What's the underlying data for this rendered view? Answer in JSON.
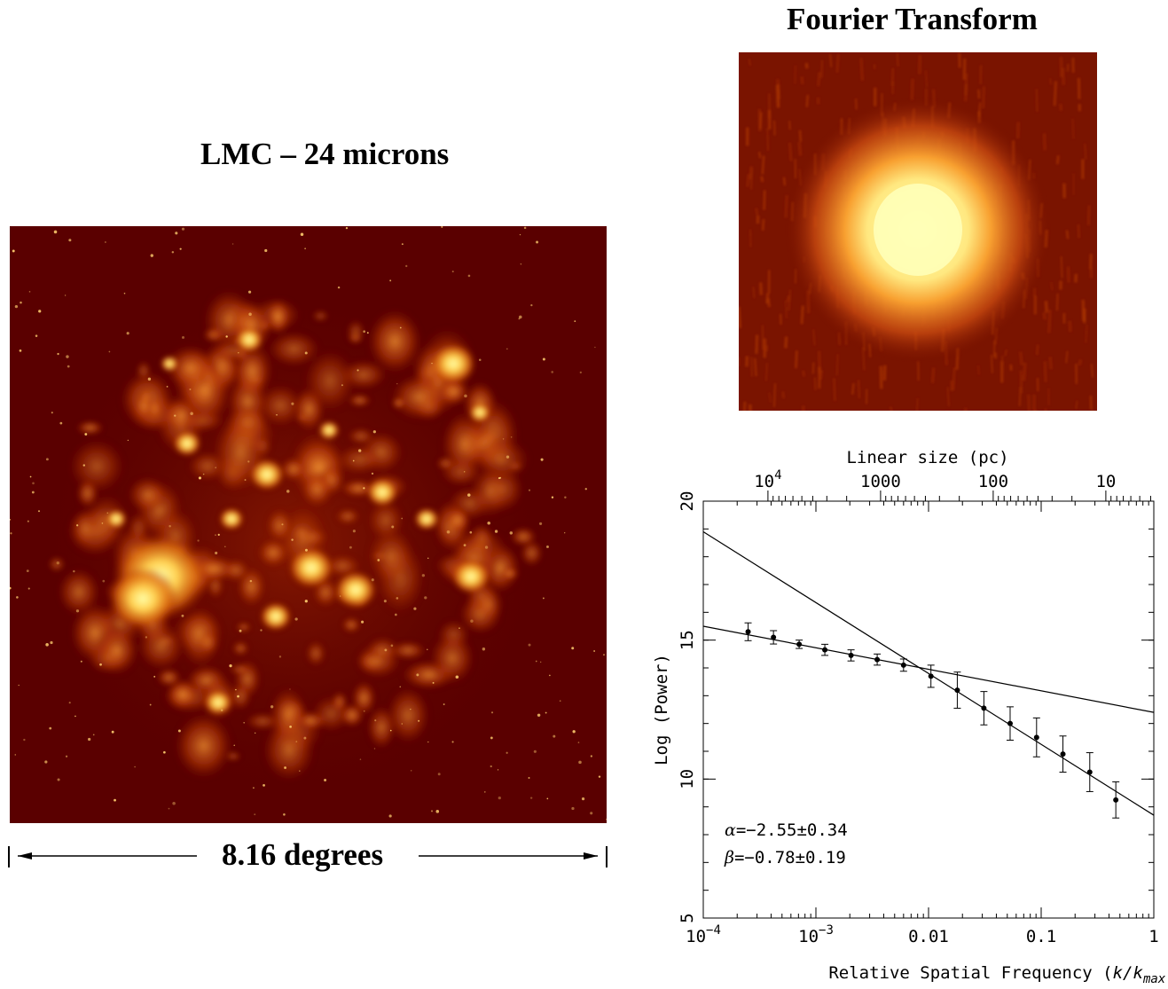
{
  "panels": {
    "left_title": "LMC – 24 microns",
    "right_title": "Fourier Transform",
    "scale_label": "8.16 degrees"
  },
  "colors": {
    "image_background": "#5a0000",
    "image_highlight": "#ffff90",
    "axes": "#000000"
  },
  "chart_data": {
    "type": "scatter",
    "x_scale": "log",
    "xlim": [
      0.0001,
      1
    ],
    "ylim": [
      5,
      20
    ],
    "xlabel_prefix": "Relative Spatial Frequency (",
    "xlabel_math": "k/k",
    "xlabel_sub": "max",
    "xlabel_suffix": ")",
    "ylabel": "Log (Power)",
    "top_axis_label": "Linear size (pc)",
    "x_ticks": [
      {
        "value": 0.0001,
        "base": "10",
        "exp": "−4"
      },
      {
        "value": 0.001,
        "base": "10",
        "exp": "−3"
      },
      {
        "value": 0.01,
        "base": "0.01",
        "exp": ""
      },
      {
        "value": 0.1,
        "base": "0.1",
        "exp": ""
      },
      {
        "value": 1,
        "base": "1",
        "exp": ""
      }
    ],
    "y_ticks": [
      5,
      10,
      15,
      20
    ],
    "top_ticks": [
      {
        "x": 0.000375,
        "base": "10",
        "exp": "4"
      },
      {
        "x": 0.00375,
        "base": "1000",
        "exp": ""
      },
      {
        "x": 0.0375,
        "base": "100",
        "exp": ""
      },
      {
        "x": 0.375,
        "base": "10",
        "exp": ""
      }
    ],
    "points": [
      {
        "x": 0.00025,
        "y": 15.3,
        "err": 0.32
      },
      {
        "x": 0.00042,
        "y": 15.1,
        "err": 0.24
      },
      {
        "x": 0.00071,
        "y": 14.85,
        "err": 0.15
      },
      {
        "x": 0.0012,
        "y": 14.65,
        "err": 0.2
      },
      {
        "x": 0.00205,
        "y": 14.45,
        "err": 0.2
      },
      {
        "x": 0.0035,
        "y": 14.3,
        "err": 0.2
      },
      {
        "x": 0.006,
        "y": 14.1,
        "err": 0.22
      },
      {
        "x": 0.0105,
        "y": 13.7,
        "err": 0.4
      },
      {
        "x": 0.018,
        "y": 13.2,
        "err": 0.65
      },
      {
        "x": 0.031,
        "y": 12.55,
        "err": 0.6
      },
      {
        "x": 0.053,
        "y": 12.0,
        "err": 0.6
      },
      {
        "x": 0.091,
        "y": 11.5,
        "err": 0.7
      },
      {
        "x": 0.156,
        "y": 10.9,
        "err": 0.65
      },
      {
        "x": 0.27,
        "y": 10.25,
        "err": 0.7
      },
      {
        "x": 0.46,
        "y": 9.25,
        "err": 0.65
      }
    ],
    "fit_lines": [
      {
        "name": "α",
        "value": "−2.55±0.34",
        "x": [
          0.0001,
          1
        ],
        "y": [
          18.9,
          8.7
        ]
      },
      {
        "name": "β",
        "value": "−0.78±0.19",
        "x": [
          0.0001,
          1
        ],
        "y": [
          15.5,
          12.4
        ]
      }
    ]
  }
}
